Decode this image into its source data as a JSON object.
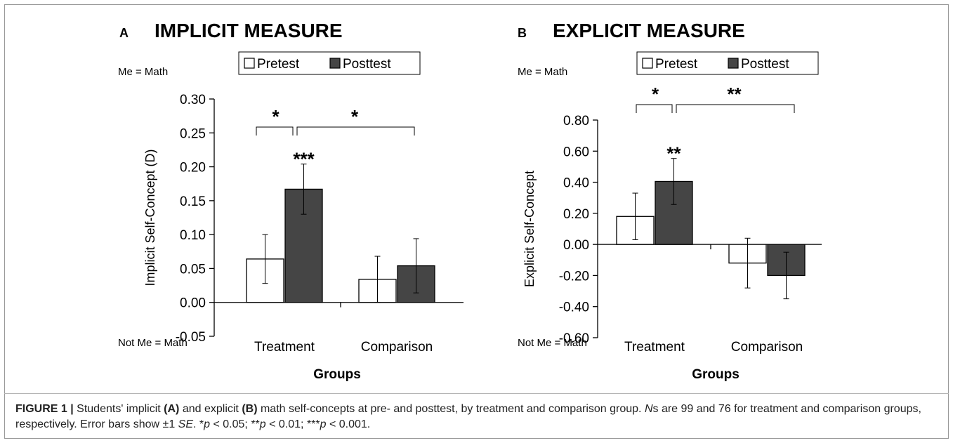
{
  "chart_data": [
    {
      "type": "bar",
      "panel_letter": "A",
      "title": "IMPLICIT MEASURE",
      "ylabel": "Implicit Self-Concept (D)",
      "xlabel": "Groups",
      "top_anchor": "Me = Math",
      "bottom_anchor": "Not Me = Math",
      "categories": [
        "Treatment",
        "Comparison"
      ],
      "ylim": [
        -0.05,
        0.3
      ],
      "yticks": [
        -0.05,
        0.0,
        0.05,
        0.1,
        0.15,
        0.2,
        0.25,
        0.3
      ],
      "ytick_labels": [
        "-0.05",
        "0.00",
        "0.05",
        "0.10",
        "0.15",
        "0.20",
        "0.25",
        "0.30"
      ],
      "series": [
        {
          "name": "Pretest",
          "values": [
            0.064,
            0.034
          ],
          "error": [
            0.036,
            0.034
          ],
          "color": "#ffffff"
        },
        {
          "name": "Posttest",
          "values": [
            0.167,
            0.054
          ],
          "error": [
            0.037,
            0.04
          ],
          "color": "#454545"
        }
      ],
      "legend_position": "top",
      "annotations": {
        "within_bracket": "*",
        "between_bracket": "*",
        "bar_stars": "***"
      }
    },
    {
      "type": "bar",
      "panel_letter": "B",
      "title": "EXPLICIT MEASURE",
      "ylabel": "Explicit Self-Concept",
      "xlabel": "Groups",
      "top_anchor": "Me = Math",
      "bottom_anchor": "Not Me = Math",
      "categories": [
        "Treatment",
        "Comparison"
      ],
      "ylim": [
        -0.6,
        0.8
      ],
      "yticks": [
        -0.6,
        -0.4,
        -0.2,
        0.0,
        0.2,
        0.4,
        0.6,
        0.8
      ],
      "ytick_labels": [
        "-0.60",
        "-0.40",
        "-0.20",
        "0.00",
        "0.20",
        "0.40",
        "0.60",
        "0.80"
      ],
      "series": [
        {
          "name": "Pretest",
          "values": [
            0.18,
            -0.12
          ],
          "error": [
            0.15,
            0.16
          ],
          "color": "#ffffff"
        },
        {
          "name": "Posttest",
          "values": [
            0.405,
            -0.2
          ],
          "error": [
            0.148,
            0.15
          ],
          "color": "#454545"
        }
      ],
      "legend_position": "top",
      "annotations": {
        "within_bracket": "*",
        "between_bracket": "**",
        "bar_stars": "**"
      }
    }
  ],
  "caption": {
    "label": "FIGURE 1 |",
    "p1": " Students' implicit ",
    "ref_a": "(A)",
    "p2": " and explicit ",
    "ref_b": "(B)",
    "p3": " math self-concepts at pre- and posttest, by treatment and comparison group. ",
    "n_symbol": "N",
    "p4": "s are 99 and 76 for treatment and comparison groups, respectively. Error bars show ±1 ",
    "se": "SE",
    "p5": ". *",
    "p_sym1": "p",
    "p6": " < 0.05; **",
    "p_sym2": "p",
    "p7": " < 0.01; ***",
    "p_sym3": "p",
    "p8": " < 0.001."
  }
}
